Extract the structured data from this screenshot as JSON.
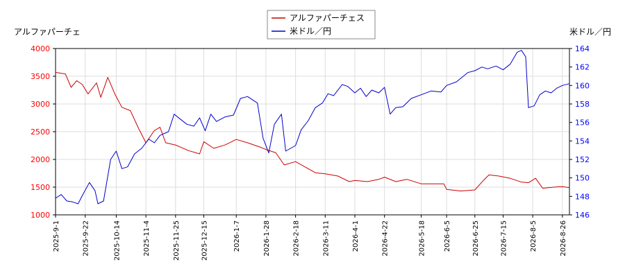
{
  "chart_data": {
    "type": "line",
    "legend_placement": "top-center",
    "grid": true,
    "left_axis": {
      "label": "アルファパーチェ",
      "ylim": [
        1000,
        4000
      ],
      "ticks": [
        "1000",
        "1500",
        "2000",
        "2500",
        "3000",
        "3500",
        "4000"
      ],
      "color": "#ff0000"
    },
    "right_axis": {
      "label": "米ドル／円",
      "ylim": [
        146,
        164
      ],
      "ticks": [
        "146",
        "148",
        "150",
        "152",
        "154",
        "156",
        "158",
        "160",
        "162",
        "164"
      ],
      "color": "#0000ff"
    },
    "x_dates": [
      "2025-9-1",
      "2025-9-22",
      "2025-10-14",
      "2025-11-4",
      "2025-11-25",
      "2025-12-15",
      "2026-1-7",
      "2026-1-28",
      "2026-2-18",
      "2026-3-11",
      "2026-4-1",
      "2026-4-22",
      "2026-5-18",
      "2026-6-5",
      "2026-6-25",
      "2026-7-15",
      "2026-8-5",
      "2026-8-26"
    ],
    "series": [
      {
        "name": "アルファパーチェス",
        "axis": "left",
        "color": "#cc0000",
        "points": [
          [
            "2025-9-1",
            3570
          ],
          [
            "2025-9-8",
            3540
          ],
          [
            "2025-9-12",
            3300
          ],
          [
            "2025-9-16",
            3420
          ],
          [
            "2025-9-20",
            3350
          ],
          [
            "2025-9-24",
            3180
          ],
          [
            "2025-9-30",
            3380
          ],
          [
            "2025-10-3",
            3120
          ],
          [
            "2025-10-8",
            3480
          ],
          [
            "2025-10-13",
            3180
          ],
          [
            "2025-10-18",
            2940
          ],
          [
            "2025-10-24",
            2880
          ],
          [
            "2025-10-30",
            2550
          ],
          [
            "2025-11-4",
            2300
          ],
          [
            "2025-11-10",
            2520
          ],
          [
            "2025-11-14",
            2580
          ],
          [
            "2025-11-18",
            2300
          ],
          [
            "2025-11-25",
            2260
          ],
          [
            "2025-12-4",
            2160
          ],
          [
            "2025-12-12",
            2100
          ],
          [
            "2025-12-15",
            2320
          ],
          [
            "2025-12-22",
            2200
          ],
          [
            "2025-12-30",
            2260
          ],
          [
            "2026-1-7",
            2360
          ],
          [
            "2026-1-15",
            2300
          ],
          [
            "2026-1-24",
            2220
          ],
          [
            "2026-1-28",
            2180
          ],
          [
            "2026-2-4",
            2120
          ],
          [
            "2026-2-10",
            1900
          ],
          [
            "2026-2-18",
            1960
          ],
          [
            "2026-2-25",
            1860
          ],
          [
            "2026-3-4",
            1760
          ],
          [
            "2026-3-11",
            1740
          ],
          [
            "2026-3-20",
            1700
          ],
          [
            "2026-3-28",
            1600
          ],
          [
            "2026-4-1",
            1620
          ],
          [
            "2026-4-10",
            1600
          ],
          [
            "2026-4-18",
            1640
          ],
          [
            "2026-4-22",
            1680
          ],
          [
            "2026-4-30",
            1600
          ],
          [
            "2026-5-8",
            1640
          ],
          [
            "2026-5-18",
            1560
          ],
          [
            "2026-5-26",
            1560
          ],
          [
            "2026-6-3",
            1560
          ],
          [
            "2026-6-5",
            1460
          ],
          [
            "2026-6-15",
            1430
          ],
          [
            "2026-6-25",
            1450
          ],
          [
            "2026-7-1",
            1620
          ],
          [
            "2026-7-5",
            1720
          ],
          [
            "2026-7-12",
            1700
          ],
          [
            "2026-7-20",
            1660
          ],
          [
            "2026-7-28",
            1590
          ],
          [
            "2026-8-2",
            1580
          ],
          [
            "2026-8-7",
            1660
          ],
          [
            "2026-8-12",
            1480
          ],
          [
            "2026-8-20",
            1500
          ],
          [
            "2026-8-26",
            1510
          ],
          [
            "2026-8-31",
            1490
          ]
        ]
      },
      {
        "name": "米ドル／円",
        "axis": "right",
        "color": "#0000cc",
        "points": [
          [
            "2025-9-1",
            147.8
          ],
          [
            "2025-9-5",
            148.2
          ],
          [
            "2025-9-9",
            147.5
          ],
          [
            "2025-9-13",
            147.4
          ],
          [
            "2025-9-17",
            147.2
          ],
          [
            "2025-9-20",
            148.1
          ],
          [
            "2025-9-25",
            149.5
          ],
          [
            "2025-9-29",
            148.6
          ],
          [
            "2025-10-1",
            147.2
          ],
          [
            "2025-10-5",
            147.5
          ],
          [
            "2025-10-10",
            152.0
          ],
          [
            "2025-10-14",
            152.9
          ],
          [
            "2025-10-18",
            151.0
          ],
          [
            "2025-10-22",
            151.2
          ],
          [
            "2025-10-27",
            152.6
          ],
          [
            "2025-11-1",
            153.2
          ],
          [
            "2025-11-6",
            154.2
          ],
          [
            "2025-11-10",
            153.8
          ],
          [
            "2025-11-14",
            154.6
          ],
          [
            "2025-11-20",
            155.0
          ],
          [
            "2025-11-24",
            156.9
          ],
          [
            "2025-11-28",
            156.4
          ],
          [
            "2025-12-3",
            155.8
          ],
          [
            "2025-12-8",
            155.6
          ],
          [
            "2025-12-12",
            156.5
          ],
          [
            "2025-12-16",
            155.1
          ],
          [
            "2025-12-20",
            156.9
          ],
          [
            "2025-12-24",
            156.1
          ],
          [
            "2025-12-30",
            156.6
          ],
          [
            "2026-1-5",
            156.8
          ],
          [
            "2026-1-10",
            158.6
          ],
          [
            "2026-1-15",
            158.8
          ],
          [
            "2026-1-22",
            158.1
          ],
          [
            "2026-1-26",
            154.3
          ],
          [
            "2026-1-30",
            152.7
          ],
          [
            "2026-2-3",
            155.8
          ],
          [
            "2026-2-8",
            156.9
          ],
          [
            "2026-2-11",
            152.9
          ],
          [
            "2026-2-18",
            153.5
          ],
          [
            "2026-2-22",
            155.2
          ],
          [
            "2026-2-27",
            156.2
          ],
          [
            "2026-3-4",
            157.6
          ],
          [
            "2026-3-9",
            158.1
          ],
          [
            "2026-3-13",
            159.1
          ],
          [
            "2026-3-17",
            158.9
          ],
          [
            "2026-3-23",
            160.1
          ],
          [
            "2026-3-27",
            159.9
          ],
          [
            "2026-4-1",
            159.2
          ],
          [
            "2026-4-5",
            159.7
          ],
          [
            "2026-4-9",
            158.8
          ],
          [
            "2026-4-13",
            159.5
          ],
          [
            "2026-4-18",
            159.2
          ],
          [
            "2026-4-22",
            159.8
          ],
          [
            "2026-4-26",
            156.9
          ],
          [
            "2026-4-30",
            157.6
          ],
          [
            "2026-5-5",
            157.7
          ],
          [
            "2026-5-11",
            158.6
          ],
          [
            "2026-5-18",
            159.0
          ],
          [
            "2026-5-25",
            159.4
          ],
          [
            "2026-6-1",
            159.3
          ],
          [
            "2026-6-5",
            160.0
          ],
          [
            "2026-6-12",
            160.4
          ],
          [
            "2026-6-20",
            161.4
          ],
          [
            "2026-6-25",
            161.6
          ],
          [
            "2026-6-30",
            162.0
          ],
          [
            "2026-7-4",
            161.8
          ],
          [
            "2026-7-10",
            162.1
          ],
          [
            "2026-7-15",
            161.7
          ],
          [
            "2026-7-20",
            162.3
          ],
          [
            "2026-7-25",
            163.6
          ],
          [
            "2026-7-28",
            163.8
          ],
          [
            "2026-7-31",
            163.1
          ],
          [
            "2026-8-2",
            157.6
          ],
          [
            "2026-8-6",
            157.8
          ],
          [
            "2026-8-10",
            159.0
          ],
          [
            "2026-8-14",
            159.4
          ],
          [
            "2026-8-18",
            159.2
          ],
          [
            "2026-8-22",
            159.7
          ],
          [
            "2026-8-26",
            160.0
          ],
          [
            "2026-8-31",
            160.2
          ]
        ]
      }
    ]
  }
}
